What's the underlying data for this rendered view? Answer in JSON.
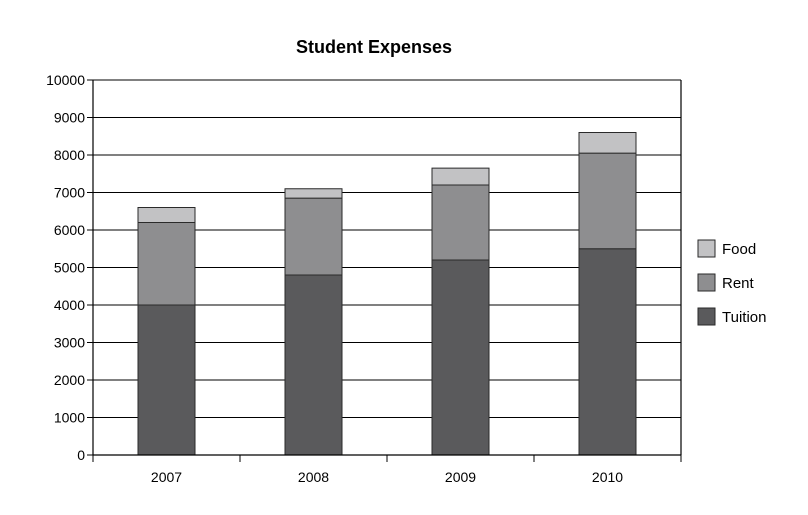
{
  "chart_data": {
    "type": "bar",
    "stacked": true,
    "title": "Student Expenses",
    "xlabel": "",
    "ylabel": "",
    "categories": [
      "2007",
      "2008",
      "2009",
      "2010"
    ],
    "ylim": [
      0,
      10000
    ],
    "yticks": [
      "0",
      "1000",
      "2000",
      "3000",
      "4000",
      "5000",
      "6000",
      "7000",
      "8000",
      "9000",
      "10000"
    ],
    "grid": true,
    "legend_position": "right",
    "series": [
      {
        "name": "Tuition",
        "color": "#5a5a5c",
        "values": [
          4000,
          4800,
          5200,
          5500
        ]
      },
      {
        "name": "Rent",
        "color": "#8e8e90",
        "values": [
          2200,
          2050,
          2000,
          2550
        ]
      },
      {
        "name": "Food",
        "color": "#c2c2c4",
        "values": [
          400,
          250,
          450,
          550
        ]
      }
    ],
    "legend_order": [
      "Food",
      "Rent",
      "Tuition"
    ]
  }
}
